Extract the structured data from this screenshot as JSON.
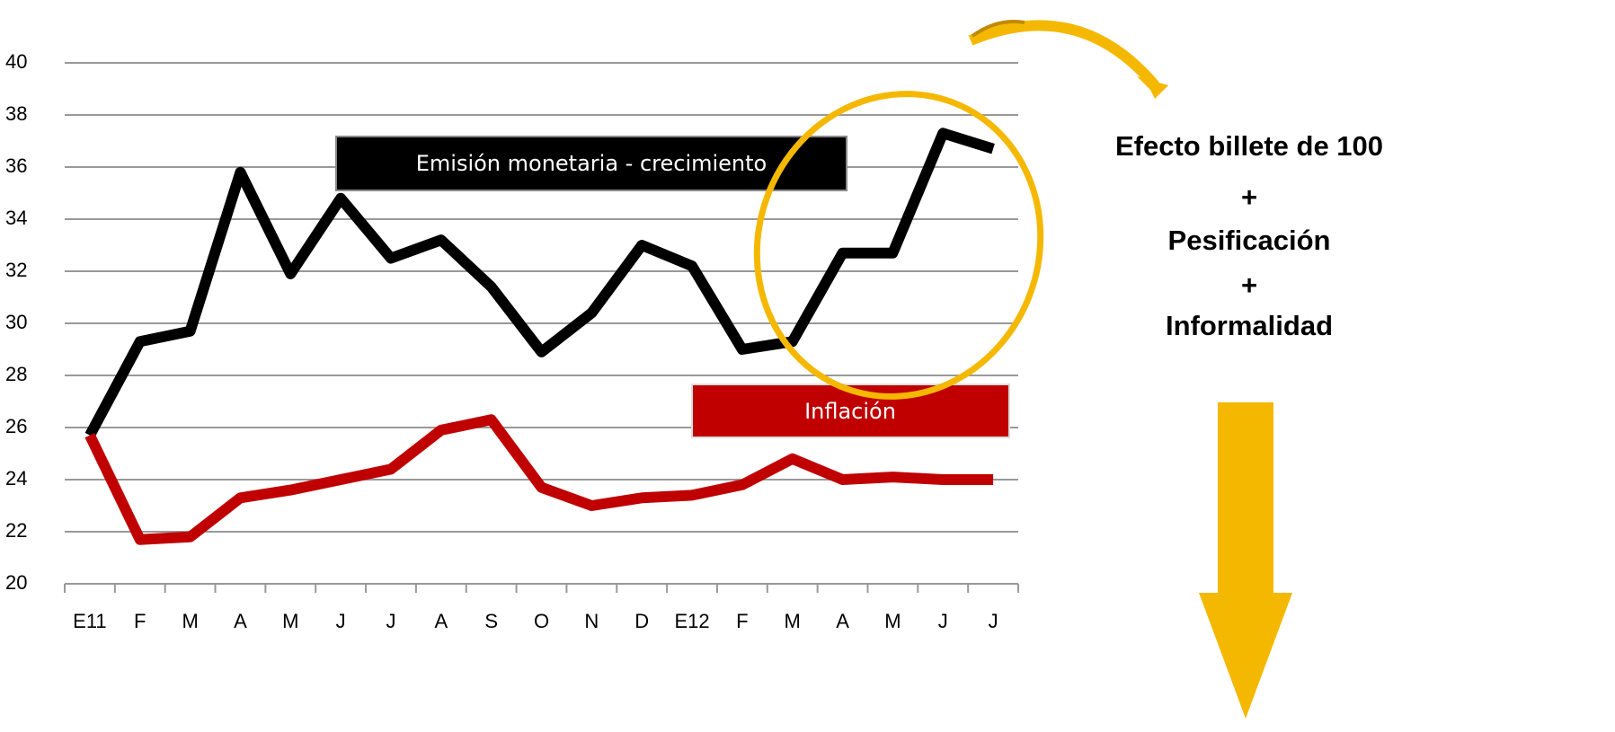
{
  "chart_data": {
    "type": "line",
    "categories": [
      "E11",
      "F",
      "M",
      "A",
      "M",
      "J",
      "J",
      "A",
      "S",
      "O",
      "N",
      "D",
      "E12",
      "F",
      "M",
      "A",
      "M",
      "J",
      "J"
    ],
    "series": [
      {
        "name": "Emisión monetaria - crecimiento",
        "color": "#000000",
        "values": [
          25.7,
          29.3,
          29.7,
          35.8,
          31.9,
          34.8,
          32.5,
          33.2,
          31.4,
          28.9,
          30.4,
          33.0,
          32.2,
          29.0,
          29.3,
          32.7,
          32.7,
          37.3,
          36.7
        ]
      },
      {
        "name": "Inflación",
        "color": "#c00000",
        "values": [
          25.7,
          21.7,
          21.8,
          23.3,
          23.6,
          24.0,
          24.4,
          25.9,
          26.3,
          23.7,
          23.0,
          23.3,
          23.4,
          23.8,
          24.8,
          24.0,
          24.1,
          24.0,
          24.0
        ]
      }
    ],
    "ylim": [
      20,
      40
    ],
    "yticks": [
      20,
      22,
      24,
      26,
      28,
      30,
      32,
      34,
      36,
      38,
      40
    ],
    "grid": true,
    "annotation": [
      "Efecto billete de 100",
      "+",
      "Pesificación",
      "+",
      "Informalidad"
    ]
  }
}
